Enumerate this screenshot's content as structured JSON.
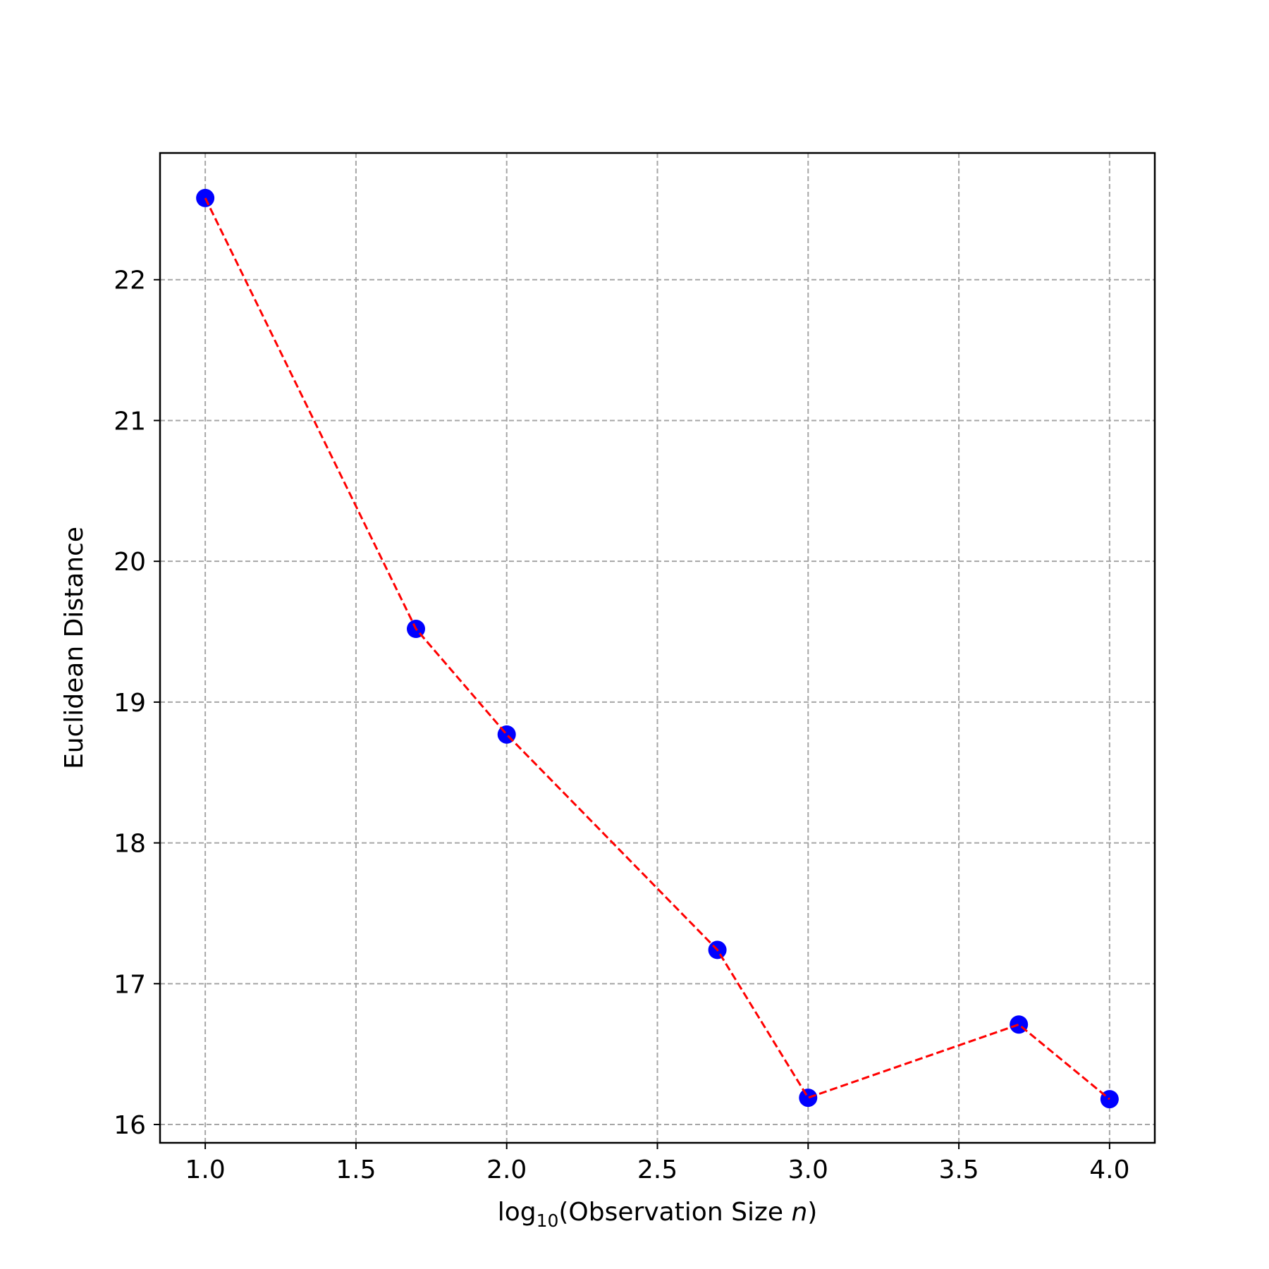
{
  "chart_data": {
    "type": "line",
    "title": "",
    "xlabel": {
      "prefix": "log",
      "subscript": "10",
      "text": "(Observation Size ",
      "italic": "n",
      "suffix": ")"
    },
    "ylabel": "Euclidean Distance",
    "xlim": [
      0.85,
      4.15
    ],
    "ylim": [
      15.87,
      22.9
    ],
    "x_ticks": [
      1.0,
      1.5,
      2.0,
      2.5,
      3.0,
      3.5,
      4.0
    ],
    "x_tick_labels": [
      "1.0",
      "1.5",
      "2.0",
      "2.5",
      "3.0",
      "3.5",
      "4.0"
    ],
    "y_ticks": [
      16,
      17,
      18,
      19,
      20,
      21,
      22
    ],
    "y_tick_labels": [
      "16",
      "17",
      "18",
      "19",
      "20",
      "21",
      "22"
    ],
    "grid": true,
    "series": [
      {
        "x": [
          1.0,
          1.699,
          2.0,
          2.699,
          3.0,
          3.699,
          4.0
        ],
        "y": [
          22.58,
          19.52,
          18.77,
          17.24,
          16.19,
          16.71,
          16.18
        ],
        "marker_color": "#0000ff",
        "line_color": "#ff0000",
        "line_style": "dashed"
      }
    ]
  }
}
